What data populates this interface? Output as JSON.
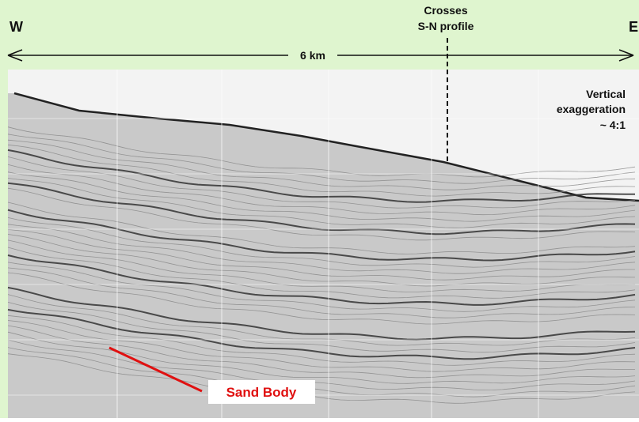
{
  "labels": {
    "west": "W",
    "east": "E",
    "crossing": [
      "Crosses",
      "S-N profile"
    ],
    "scale": "6 km",
    "exaggeration": [
      "Vertical",
      "exaggeration",
      "~ 4:1"
    ],
    "feature": "Sand Body"
  }
}
